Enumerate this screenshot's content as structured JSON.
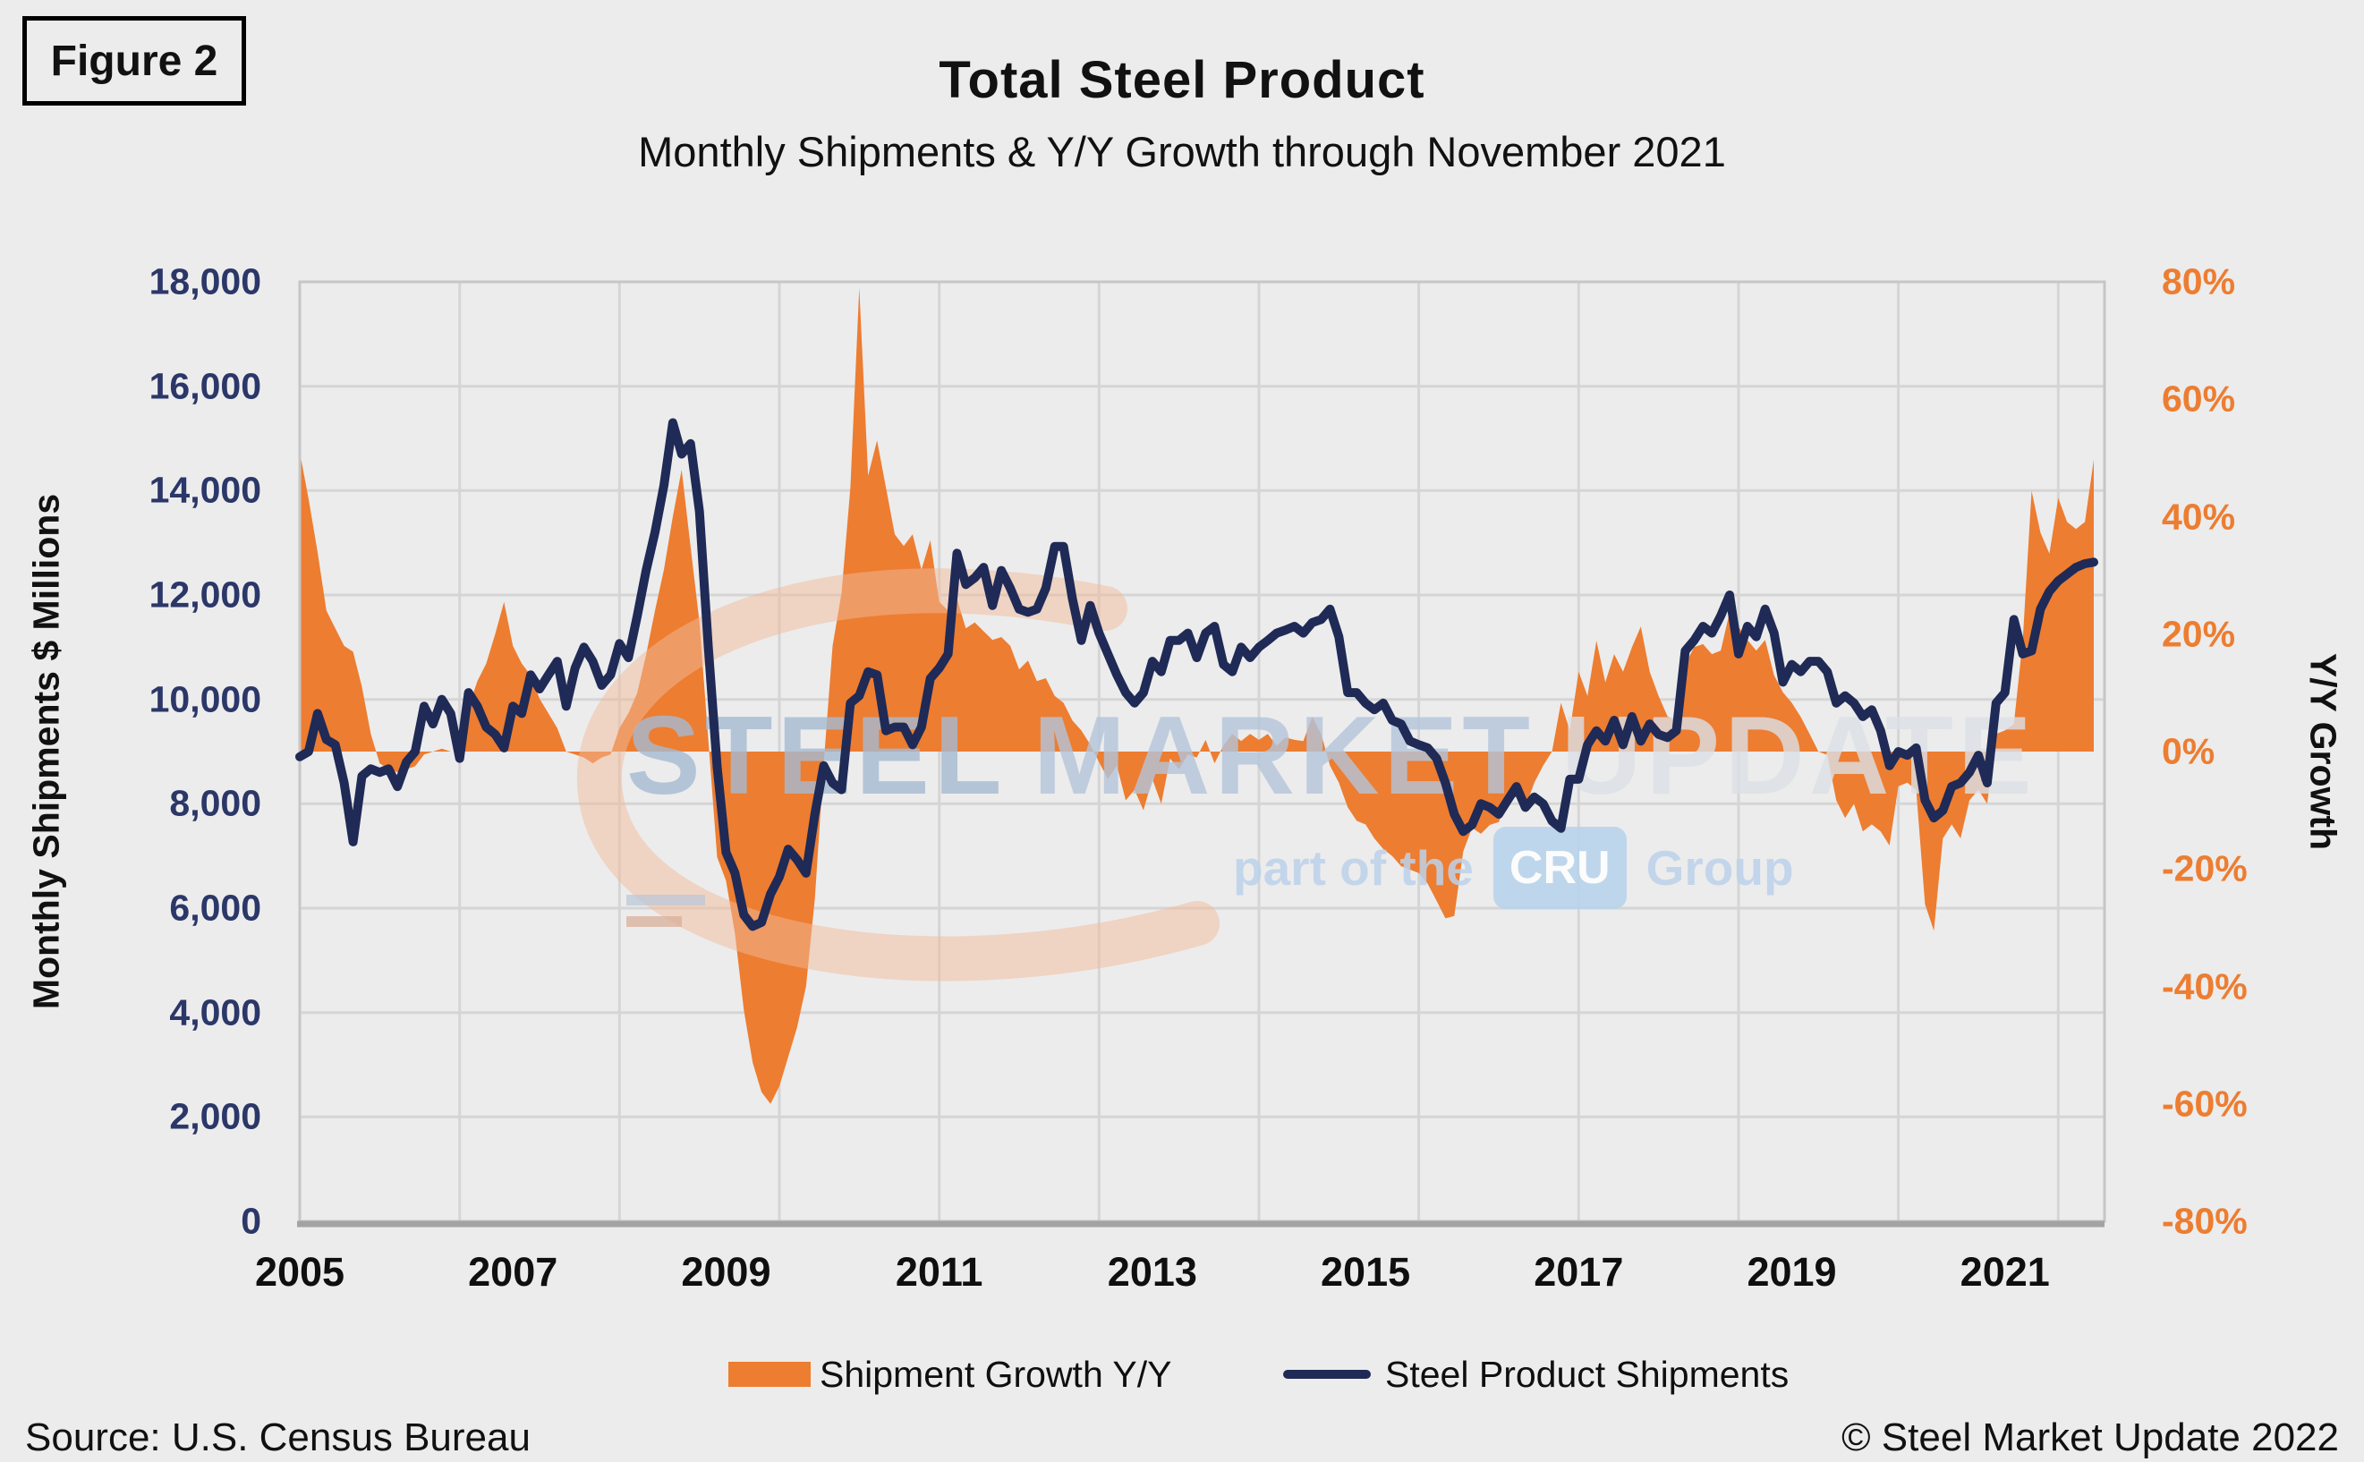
{
  "figure": {
    "label": "Figure 2"
  },
  "header": {
    "title": "Total Steel Product",
    "subtitle": "Monthly Shipments & Y/Y Growth through November 2021"
  },
  "axes": {
    "left": {
      "title": "Monthly Shipments $ Millions",
      "ticks": [
        "18,000",
        "16,000",
        "14,000",
        "12,000",
        "10,000",
        "8,000",
        "6,000",
        "4,000",
        "2,000",
        "0"
      ]
    },
    "right": {
      "title": "Y/Y Growth",
      "ticks": [
        "80%",
        "60%",
        "40%",
        "20%",
        "0%",
        "-20%",
        "-40%",
        "-60%",
        "-80%"
      ]
    },
    "x": {
      "ticks": [
        "2005",
        "2007",
        "2009",
        "2011",
        "2013",
        "2015",
        "2017",
        "2019",
        "2021"
      ]
    }
  },
  "legend": [
    {
      "label": "Shipment Growth Y/Y",
      "swatch": "area",
      "color": "#ED7D31"
    },
    {
      "label": "Steel Product Shipments",
      "swatch": "line",
      "color": "#1F2A56"
    }
  ],
  "footer": {
    "source": "Source: U.S. Census Bureau",
    "copyright": "© Steel Market Update 2022"
  },
  "watermark": {
    "words": [
      {
        "text": "STEEL"
      },
      {
        "text": "MARKET"
      },
      {
        "text": "UPDATE"
      }
    ],
    "tagline_prefix": "part of the",
    "tagline_chip": "CRU",
    "tagline_suffix": "Group"
  },
  "colors": {
    "growth_area": "#ED7D31",
    "shipments_line": "#1F2A56",
    "background": "#ECECEC",
    "grid": "#D5D5D5",
    "frame": "#C6C6C6",
    "axis_line": "#A3A3A3",
    "left_tick_text": "#2B3768",
    "right_tick_text": "#ED7D31"
  },
  "chart_data": {
    "type": "combo",
    "title": "Total Steel Product",
    "subtitle": "Monthly Shipments & Y/Y Growth through November 2021",
    "x_monthly_start": "2005-01",
    "x_monthly_end": "2021-11",
    "grid": "on",
    "legend_position": "bottom",
    "left_axis": {
      "label": "Monthly Shipments $ Millions",
      "range": [
        0,
        18000
      ],
      "tick_step": 2000
    },
    "right_axis": {
      "label": "Y/Y Growth",
      "range": [
        -80,
        80
      ],
      "tick_step": 20,
      "unit": "%"
    },
    "x_axis": {
      "label_interval_months": 24,
      "gridline_interval_months": 18
    },
    "series": [
      {
        "name": "Shipment Growth Y/Y",
        "type": "area",
        "axis": "right",
        "unit": "%",
        "color": "#ED7D31",
        "values": [
          51,
          43,
          34,
          24,
          21,
          18,
          17,
          11,
          3,
          -2,
          -3,
          -3.5,
          -3,
          -2.5,
          -0.5,
          0,
          0.5,
          0,
          0,
          7.5,
          12,
          15,
          20,
          25.5,
          18,
          15,
          13,
          9,
          6.5,
          4,
          0,
          -0.5,
          -1,
          -2,
          -1,
          -0.5,
          4,
          6.5,
          10,
          16.5,
          24,
          31,
          40,
          48,
          35,
          22,
          2,
          -18,
          -22,
          -31,
          -44,
          -53,
          -58,
          -60,
          -57,
          -52,
          -47,
          -40,
          -25,
          -2,
          18,
          27,
          45,
          79,
          47,
          53,
          45,
          37,
          35,
          37,
          31,
          36,
          25.5,
          24,
          26,
          21,
          22,
          20.5,
          19,
          19.5,
          18,
          14,
          15.5,
          12,
          12.5,
          9.5,
          8.3,
          5.3,
          3.6,
          1.2,
          -1.8,
          -4.7,
          -2.4,
          -8.3,
          -6.5,
          -10,
          -4.7,
          -8.9,
          -1.2,
          -3,
          -0.5,
          -1,
          2,
          -2,
          1,
          3,
          1.8,
          3,
          2,
          3,
          1,
          2.4,
          2,
          1.8,
          5.9,
          3,
          -2.4,
          -5.3,
          -9.5,
          -11.8,
          -12.4,
          -14.8,
          -16.6,
          -17.8,
          -19.5,
          -20.1,
          -20.7,
          -22.5,
          -25.4,
          -28.4,
          -28,
          -17,
          -13,
          -14,
          -12.5,
          -12,
          -8.3,
          -7.7,
          -9.5,
          -5.3,
          -2.4,
          0,
          8.3,
          3.6,
          13.6,
          9.5,
          18.9,
          11.8,
          16.6,
          13.6,
          17.8,
          21.3,
          13.6,
          9.5,
          6,
          5.3,
          14.8,
          17.8,
          18.3,
          16.6,
          17.2,
          23.7,
          21.3,
          19,
          17.2,
          19,
          13,
          10.1,
          8.3,
          5.9,
          3,
          0,
          -0.6,
          -8.3,
          -11.3,
          -8.9,
          -13.6,
          -12.4,
          -13.6,
          -16,
          -5.9,
          -5.3,
          -6.5,
          -26,
          -30.5,
          -14.8,
          -12.4,
          -14.8,
          -8.3,
          -6.5,
          -8.9,
          3,
          3.6,
          4.7,
          18.9,
          44.4,
          37.3,
          33.7,
          43.2,
          39.1,
          37.9,
          39.1,
          49.7
        ]
      },
      {
        "name": "Steel Product Shipments",
        "type": "line",
        "axis": "left",
        "unit": "$M",
        "color": "#1F2A56",
        "values": [
          8900,
          9000,
          9730,
          9230,
          9130,
          8400,
          7270,
          8530,
          8670,
          8600,
          8670,
          8330,
          8800,
          9000,
          9870,
          9530,
          10000,
          9730,
          8870,
          10130,
          9870,
          9470,
          9330,
          9070,
          9870,
          9730,
          10470,
          10200,
          10470,
          10730,
          9870,
          10600,
          11000,
          10730,
          10270,
          10470,
          11070,
          10800,
          11600,
          12470,
          13200,
          14100,
          15300,
          14700,
          14900,
          13600,
          11000,
          8700,
          7070,
          6670,
          5870,
          5650,
          5730,
          6270,
          6600,
          7130,
          6930,
          6670,
          7800,
          8730,
          8400,
          8270,
          9930,
          10070,
          10530,
          10470,
          9400,
          9470,
          9470,
          9130,
          9470,
          10400,
          10600,
          10870,
          12800,
          12200,
          12330,
          12530,
          11800,
          12470,
          12130,
          11730,
          11670,
          11730,
          12130,
          12930,
          12930,
          11930,
          11130,
          11800,
          11270,
          10870,
          10470,
          10130,
          9930,
          10130,
          10730,
          10530,
          11130,
          11130,
          11270,
          10800,
          11270,
          11400,
          10670,
          10530,
          11000,
          10800,
          11000,
          11130,
          11270,
          11330,
          11400,
          11270,
          11470,
          11530,
          11730,
          11200,
          10130,
          10130,
          9930,
          9800,
          9930,
          9600,
          9530,
          9200,
          9130,
          9070,
          8870,
          8400,
          7800,
          7470,
          7600,
          8000,
          7930,
          7800,
          8070,
          8330,
          7930,
          8130,
          8000,
          7670,
          7530,
          8470,
          8470,
          9130,
          9400,
          9200,
          9600,
          9130,
          9670,
          9200,
          9530,
          9330,
          9270,
          9400,
          10930,
          11130,
          11400,
          11270,
          11600,
          12000,
          10870,
          11400,
          11200,
          11730,
          11270,
          10330,
          10670,
          10530,
          10730,
          10730,
          10530,
          9930,
          10070,
          9930,
          9670,
          9800,
          9400,
          8730,
          9000,
          8930,
          9070,
          8070,
          7730,
          7870,
          8330,
          8400,
          8600,
          8930,
          8400,
          9930,
          10130,
          11530,
          10870,
          10930,
          11730,
          12070,
          12270,
          12400,
          12530,
          12600,
          12630
        ]
      }
    ]
  }
}
